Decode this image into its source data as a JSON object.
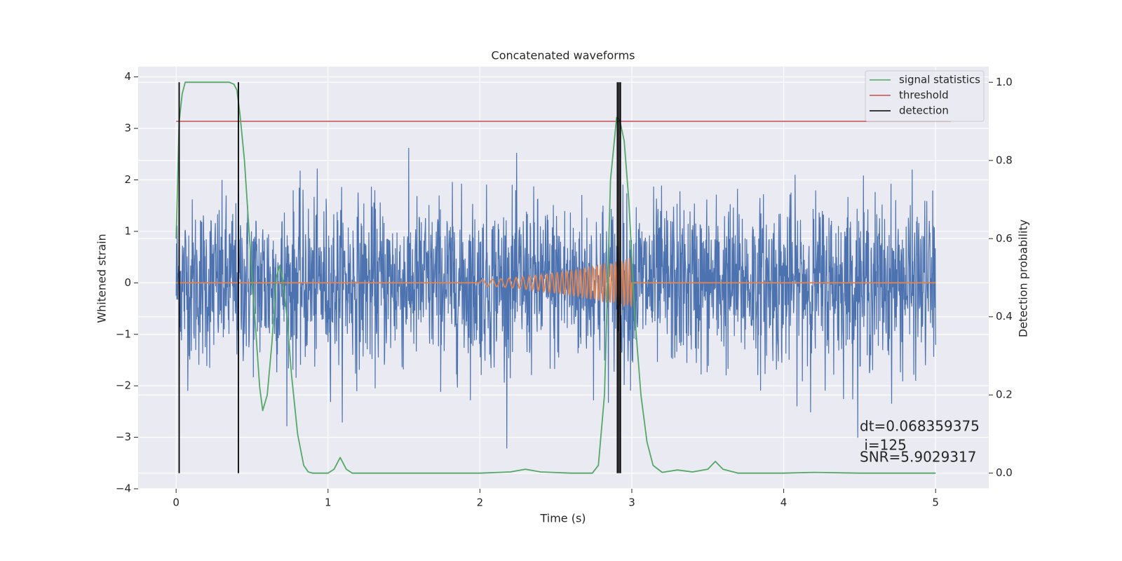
{
  "chart_data": {
    "type": "line",
    "title": "Concatenated waveforms",
    "xlabel": "Time (s)",
    "ylabel": "Whitened strain",
    "y2label": "Detection probability",
    "xlim": [
      -0.25,
      5.35
    ],
    "ylim": [
      -4.0,
      4.2
    ],
    "y2lim": [
      -0.04,
      1.04
    ],
    "xticks": [
      0,
      1,
      2,
      3,
      4,
      5
    ],
    "xtick_labels": [
      "0",
      "1",
      "2",
      "3",
      "4",
      "5"
    ],
    "yticks": [
      -4,
      -3,
      -2,
      -1,
      0,
      1,
      2,
      3,
      4
    ],
    "ytick_labels": [
      "−4",
      "−3",
      "−2",
      "−1",
      "0",
      "1",
      "2",
      "3",
      "4"
    ],
    "y2ticks": [
      0.0,
      0.2,
      0.4,
      0.6,
      0.8,
      1.0
    ],
    "y2tick_labels": [
      "0.0",
      "0.2",
      "0.4",
      "0.6",
      "0.8",
      "1.0"
    ],
    "grid": true,
    "legend_position": "top-right",
    "series": [
      {
        "label": "",
        "axis": "left",
        "color": "#4c72b0",
        "description_kind": "noise",
        "x_range": [
          0,
          5
        ],
        "rms": 0.8,
        "max_abs": 3.8
      },
      {
        "label": "",
        "axis": "left",
        "color": "#dd8452",
        "description_kind": "chirp",
        "x_range": [
          0,
          5
        ],
        "chirp_start": 2.0,
        "chirp_end": 3.0,
        "peak_amplitude": 0.5
      },
      {
        "name": "signal statistics",
        "axis": "right",
        "color": "#55a868",
        "x": [
          0.0,
          0.02,
          0.04,
          0.06,
          0.08,
          0.1,
          0.2,
          0.3,
          0.35,
          0.38,
          0.4,
          0.42,
          0.45,
          0.5,
          0.55,
          0.57,
          0.6,
          0.63,
          0.66,
          0.68,
          0.7,
          0.73,
          0.76,
          0.8,
          0.84,
          0.87,
          0.9,
          1.0,
          1.04,
          1.08,
          1.12,
          1.16,
          1.3,
          1.6,
          2.0,
          2.2,
          2.3,
          2.4,
          2.6,
          2.74,
          2.78,
          2.82,
          2.86,
          2.9,
          2.92,
          2.95,
          2.98,
          3.0,
          3.02,
          3.06,
          3.1,
          3.14,
          3.2,
          3.3,
          3.4,
          3.5,
          3.55,
          3.6,
          3.7,
          4.0,
          4.2,
          4.5,
          5.0
        ],
        "y": [
          0.6,
          0.9,
          0.97,
          1.0,
          1.0,
          1.0,
          1.0,
          1.0,
          1.0,
          0.995,
          0.98,
          0.92,
          0.8,
          0.5,
          0.22,
          0.16,
          0.2,
          0.33,
          0.5,
          0.53,
          0.5,
          0.4,
          0.25,
          0.1,
          0.02,
          0.003,
          0.0,
          0.0,
          0.01,
          0.04,
          0.01,
          0.0,
          0.0,
          0.0,
          0.0,
          0.003,
          0.01,
          0.003,
          0.0,
          0.0,
          0.02,
          0.2,
          0.75,
          0.91,
          0.905,
          0.85,
          0.7,
          0.55,
          0.4,
          0.2,
          0.08,
          0.02,
          0.002,
          0.008,
          0.003,
          0.01,
          0.03,
          0.01,
          0.0,
          0.0,
          0.002,
          0.0,
          0.0
        ]
      },
      {
        "name": "threshold",
        "axis": "right",
        "color": "#c44e52",
        "x": [
          0.0,
          5.1
        ],
        "y": [
          0.9,
          0.9
        ]
      },
      {
        "name": "detection",
        "axis": "right",
        "color": "#000000",
        "vlines_x": [
          0.02,
          0.41,
          2.905,
          2.915,
          2.925
        ],
        "vline_range": [
          0.0,
          1.0
        ]
      }
    ],
    "annotations": [
      "dt=0.068359375",
      " i=125",
      "SNR=5.9029317"
    ]
  }
}
